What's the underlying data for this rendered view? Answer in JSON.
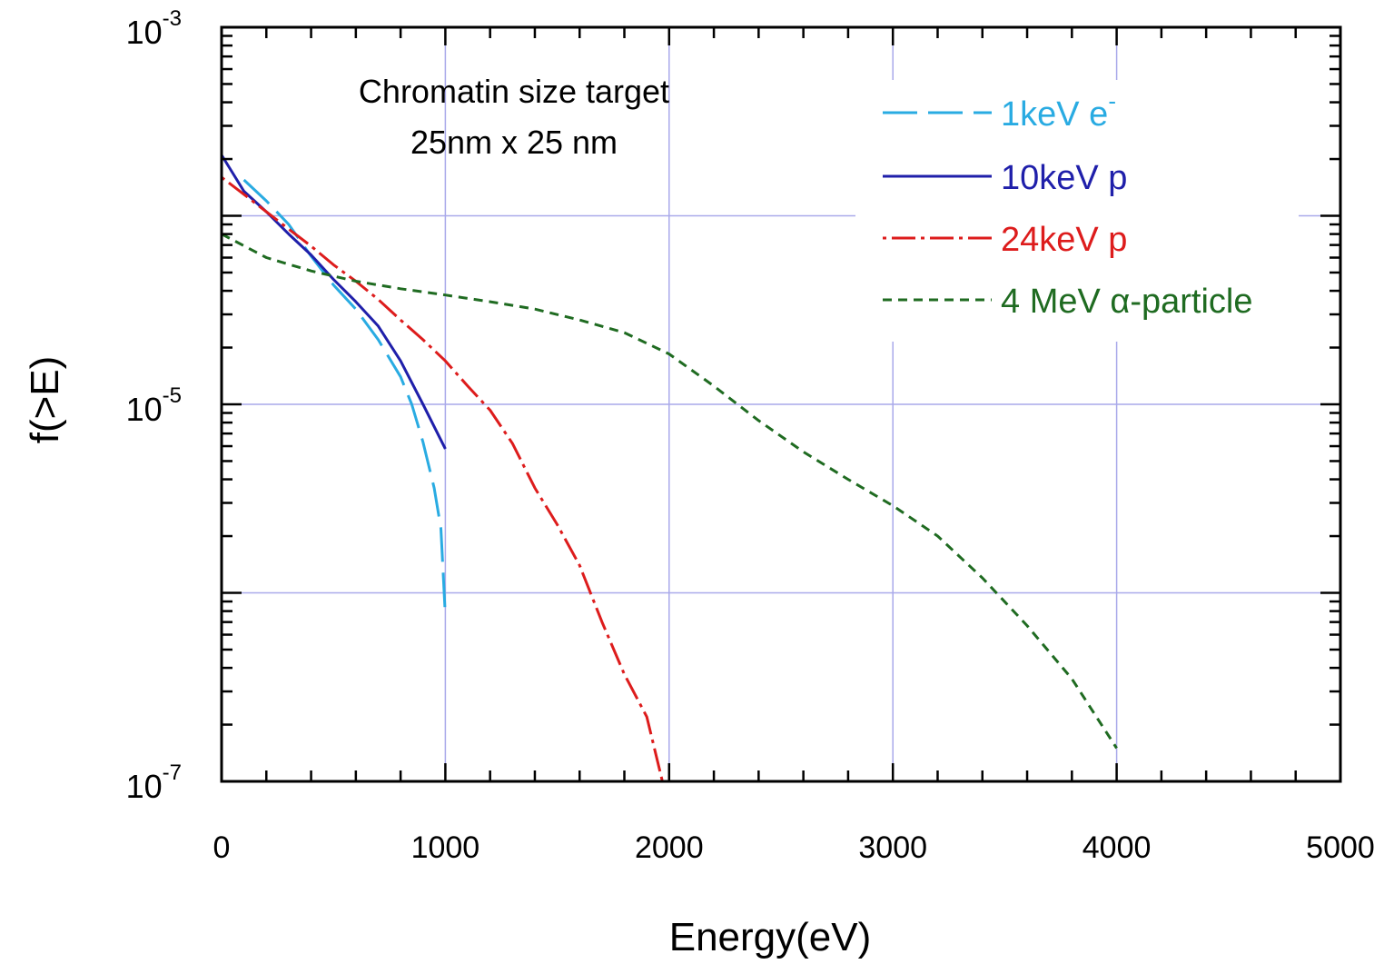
{
  "chart_data": {
    "type": "line",
    "title": "",
    "xlabel": "Energy(eV)",
    "ylabel": "f(>E)",
    "xlim": [
      0,
      5000
    ],
    "ylim": [
      1e-07,
      0.001
    ],
    "yscale": "log",
    "grid": true,
    "legend_placement": "top-right",
    "x_ticks": [
      {
        "value": 0,
        "label": "0"
      },
      {
        "value": 1000,
        "label": "1000"
      },
      {
        "value": 2000,
        "label": "2000"
      },
      {
        "value": 3000,
        "label": "3000"
      },
      {
        "value": 4000,
        "label": "4000"
      },
      {
        "value": 5000,
        "label": "5000"
      }
    ],
    "y_ticks": [
      {
        "value": 0.001,
        "base": "10",
        "exp": "-3"
      },
      {
        "value": 1e-05,
        "base": "10",
        "exp": "-5"
      },
      {
        "value": 1e-07,
        "base": "10",
        "exp": "-7"
      }
    ],
    "annotations": [
      "Chromatin size target",
      "25nm x 25 nm"
    ],
    "series": [
      {
        "name": "1keV e",
        "name_sup": "-",
        "color": "#29abe2",
        "dash": "38 12",
        "points": [
          [
            100,
            0.000155
          ],
          [
            200,
            0.00012
          ],
          [
            300,
            9e-05
          ],
          [
            400,
            6.1e-05
          ],
          [
            500,
            4.3e-05
          ],
          [
            600,
            3.2e-05
          ],
          [
            700,
            2.2e-05
          ],
          [
            800,
            1.4e-05
          ],
          [
            850,
            1e-05
          ],
          [
            900,
            6.3e-06
          ],
          [
            950,
            3.6e-06
          ],
          [
            980,
            2.2e-06
          ],
          [
            1000,
            7.5e-07
          ]
        ]
      },
      {
        "name": "10keV p",
        "color": "#1f1faa",
        "dash": "",
        "points": [
          [
            0,
            0.00021
          ],
          [
            100,
            0.000135
          ],
          [
            200,
            0.000105
          ],
          [
            300,
            8e-05
          ],
          [
            400,
            6.2e-05
          ],
          [
            500,
            4.6e-05
          ],
          [
            600,
            3.5e-05
          ],
          [
            700,
            2.6e-05
          ],
          [
            800,
            1.7e-05
          ],
          [
            900,
            1e-05
          ],
          [
            1000,
            5.8e-06
          ]
        ]
      },
      {
        "name": "24keV p",
        "color": "#dd1c1c",
        "dash": "4 6 26 6",
        "points": [
          [
            0,
            0.00016
          ],
          [
            100,
            0.00013
          ],
          [
            200,
            0.000105
          ],
          [
            300,
            8.5e-05
          ],
          [
            400,
            6.9e-05
          ],
          [
            500,
            5.5e-05
          ],
          [
            600,
            4.5e-05
          ],
          [
            700,
            3.6e-05
          ],
          [
            800,
            2.8e-05
          ],
          [
            900,
            2.2e-05
          ],
          [
            1000,
            1.7e-05
          ],
          [
            1100,
            1.25e-05
          ],
          [
            1200,
            9.3e-06
          ],
          [
            1300,
            6.2e-06
          ],
          [
            1400,
            3.6e-06
          ],
          [
            1500,
            2.3e-06
          ],
          [
            1600,
            1.4e-06
          ],
          [
            1700,
            7e-07
          ],
          [
            1800,
            3.7e-07
          ],
          [
            1900,
            2.2e-07
          ],
          [
            1970,
            1e-07
          ]
        ]
      },
      {
        "name": "4 MeV α-particle",
        "color": "#1f6b21",
        "dash": "10 7",
        "points": [
          [
            0,
            8e-05
          ],
          [
            200,
            6e-05
          ],
          [
            400,
            5.1e-05
          ],
          [
            600,
            4.5e-05
          ],
          [
            800,
            4.1e-05
          ],
          [
            1000,
            3.8e-05
          ],
          [
            1200,
            3.5e-05
          ],
          [
            1400,
            3.2e-05
          ],
          [
            1600,
            2.8e-05
          ],
          [
            1800,
            2.4e-05
          ],
          [
            2000,
            1.85e-05
          ],
          [
            2200,
            1.25e-05
          ],
          [
            2400,
            8.2e-06
          ],
          [
            2600,
            5.6e-06
          ],
          [
            2800,
            4e-06
          ],
          [
            3000,
            2.9e-06
          ],
          [
            3200,
            2e-06
          ],
          [
            3400,
            1.2e-06
          ],
          [
            3600,
            6.7e-07
          ],
          [
            3800,
            3.5e-07
          ],
          [
            4000,
            1.5e-07
          ]
        ]
      }
    ]
  }
}
